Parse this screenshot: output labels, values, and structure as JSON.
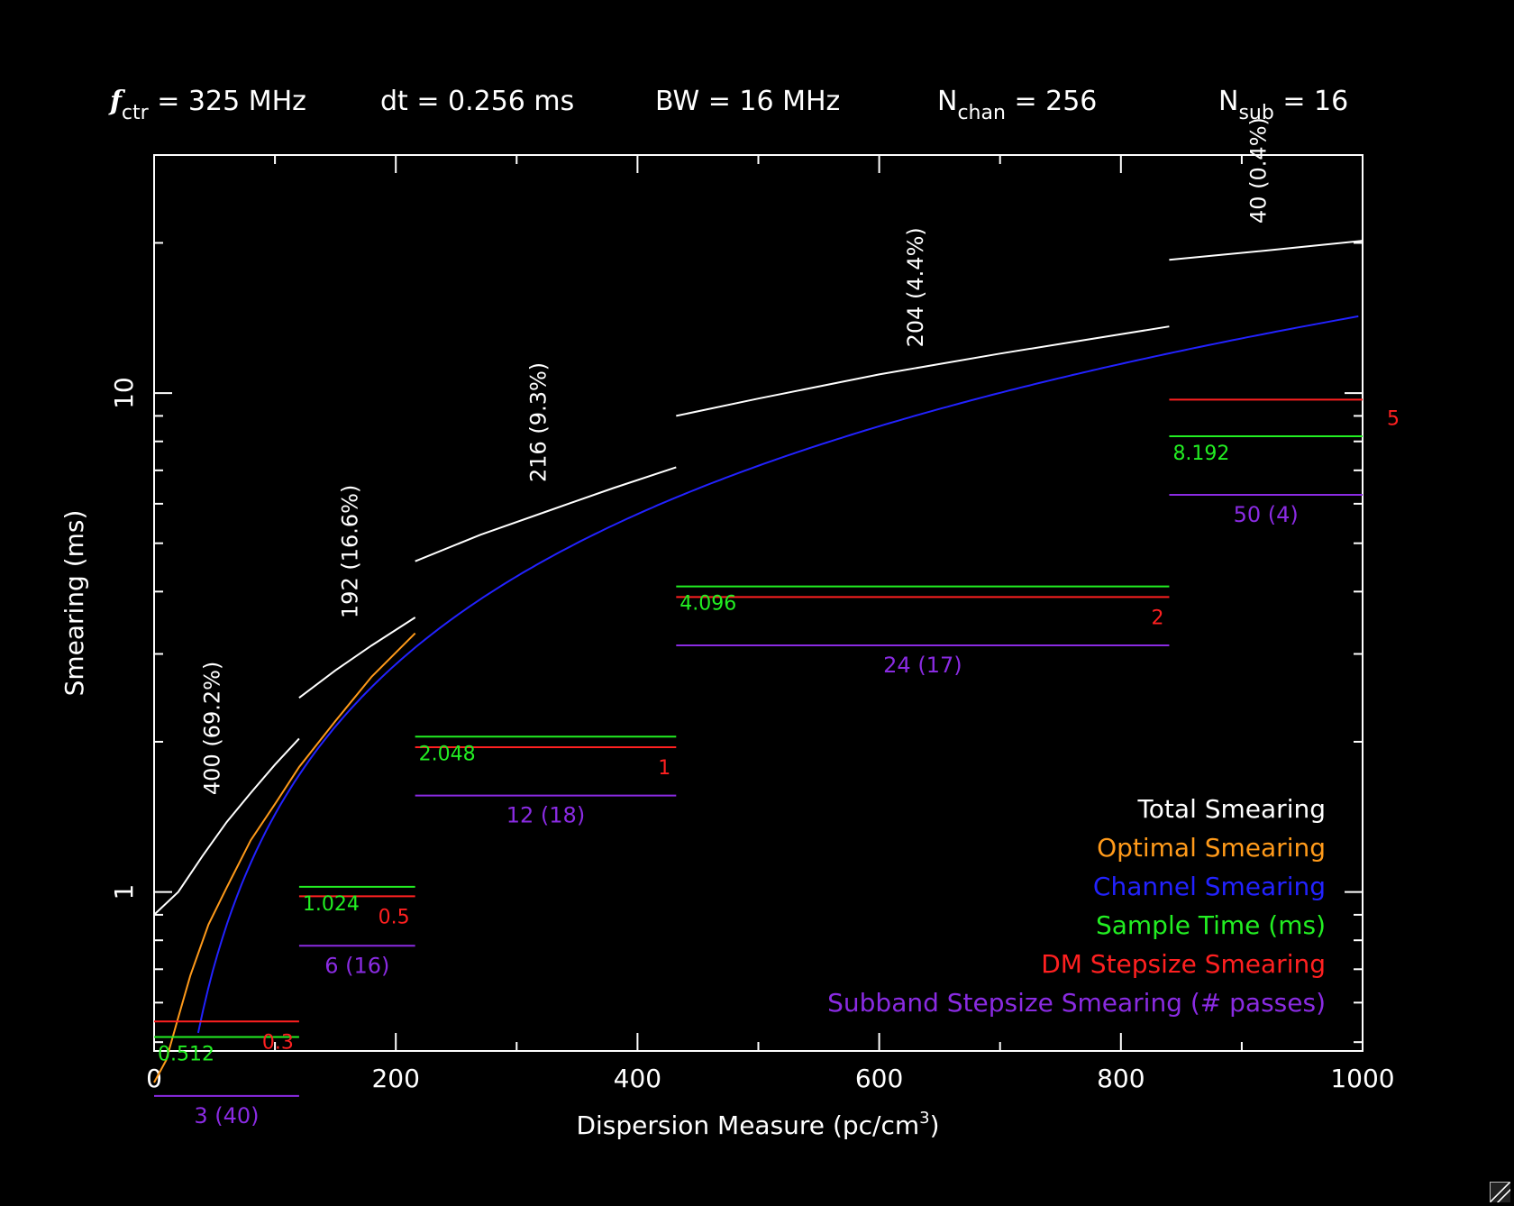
{
  "header": {
    "f_symbol": "f",
    "f_sub": "ctr",
    "f_rest": " = 325 MHz",
    "dt": "dt = 0.256 ms",
    "bw": "BW = 16 MHz",
    "nchan_main": "N",
    "nchan_sub": "chan",
    "nchan_rest": " = 256",
    "nsub_main": "N",
    "nsub_sub": "sub",
    "nsub_rest": " = 16"
  },
  "colors": {
    "total": "#ffffff",
    "optimal": "#ff9a1a",
    "channel": "#2222ff",
    "sample": "#22ee22",
    "dm": "#ff2020",
    "subband": "#8a2be2"
  },
  "legend": [
    {
      "key": "total",
      "label": "Total Smearing"
    },
    {
      "key": "optimal",
      "label": "Optimal Smearing"
    },
    {
      "key": "channel",
      "label": "Channel Smearing"
    },
    {
      "key": "sample",
      "label": "Sample Time (ms)"
    },
    {
      "key": "dm",
      "label": "DM Stepsize Smearing"
    },
    {
      "key": "subband",
      "label": "Subband Stepsize Smearing (# passes)"
    }
  ],
  "chart_data": {
    "type": "line",
    "xscale": "linear",
    "yscale": "log",
    "xlim": [
      0,
      1000
    ],
    "ylim": [
      0.48,
      30
    ],
    "xlabel_main": "Dispersion Measure (pc/cm",
    "xlabel_sup": "3",
    "xlabel_end": ")",
    "ylabel": "Smearing (ms)",
    "xticks": [
      0,
      200,
      400,
      600,
      800,
      1000
    ],
    "xtick_labels": [
      "0",
      "200",
      "400",
      "600",
      "800",
      "1000"
    ],
    "yticks": [
      1,
      10
    ],
    "ytick_labels": [
      "1",
      "10"
    ],
    "segments": [
      {
        "dm_start": 0,
        "dm_end": 120,
        "sample": 0.512,
        "sample_label": "0.512",
        "dm_step": 0.55,
        "dm_step_label": "0.3",
        "subband": 0.39,
        "subband_label": "3 (40)",
        "count_label": "400 (69.2%)",
        "total": [
          [
            0,
            0.9
          ],
          [
            20,
            1.0
          ],
          [
            40,
            1.18
          ],
          [
            60,
            1.38
          ],
          [
            80,
            1.58
          ],
          [
            100,
            1.8
          ],
          [
            120,
            2.03
          ]
        ]
      },
      {
        "dm_start": 120,
        "dm_end": 216,
        "sample": 1.024,
        "sample_label": "1.024",
        "dm_step": 0.98,
        "dm_step_label": "0.5",
        "subband": 0.78,
        "subband_label": "6 (16)",
        "count_label": "192 (16.6%)",
        "total": [
          [
            120,
            2.45
          ],
          [
            150,
            2.78
          ],
          [
            180,
            3.12
          ],
          [
            216,
            3.55
          ]
        ]
      },
      {
        "dm_start": 216,
        "dm_end": 432,
        "sample": 2.048,
        "sample_label": "2.048",
        "dm_step": 1.95,
        "dm_step_label": "1",
        "subband": 1.56,
        "subband_label": "12 (18)",
        "count_label": "216 (9.3%)",
        "total": [
          [
            216,
            4.6
          ],
          [
            270,
            5.2
          ],
          [
            330,
            5.85
          ],
          [
            380,
            6.45
          ],
          [
            432,
            7.1
          ]
        ]
      },
      {
        "dm_start": 432,
        "dm_end": 840,
        "sample": 4.096,
        "sample_label": "4.096",
        "dm_step": 3.9,
        "dm_step_label": "2",
        "subband": 3.12,
        "subband_label": "24 (17)",
        "count_label": "204 (4.4%)",
        "total": [
          [
            432,
            9.0
          ],
          [
            500,
            9.75
          ],
          [
            600,
            10.9
          ],
          [
            700,
            12.0
          ],
          [
            840,
            13.6
          ]
        ]
      },
      {
        "dm_start": 840,
        "dm_end": 1000,
        "sample": 8.192,
        "sample_label": "8.192",
        "dm_step": 9.7,
        "dm_step_label": "5",
        "subband": 6.25,
        "subband_label": "50 (4)",
        "count_label": "40 (0.4%)",
        "total": [
          [
            840,
            18.5
          ],
          [
            920,
            19.3
          ],
          [
            1000,
            20.2
          ]
        ]
      }
    ],
    "channel_curve_k": 0.0143,
    "optimal_curve": [
      [
        0,
        0.415
      ],
      [
        10,
        0.46
      ],
      [
        20,
        0.56
      ],
      [
        30,
        0.68
      ],
      [
        45,
        0.86
      ],
      [
        60,
        1.02
      ],
      [
        80,
        1.27
      ],
      [
        100,
        1.5
      ],
      [
        120,
        1.78
      ],
      [
        150,
        2.2
      ],
      [
        180,
        2.7
      ],
      [
        216,
        3.3
      ]
    ]
  }
}
